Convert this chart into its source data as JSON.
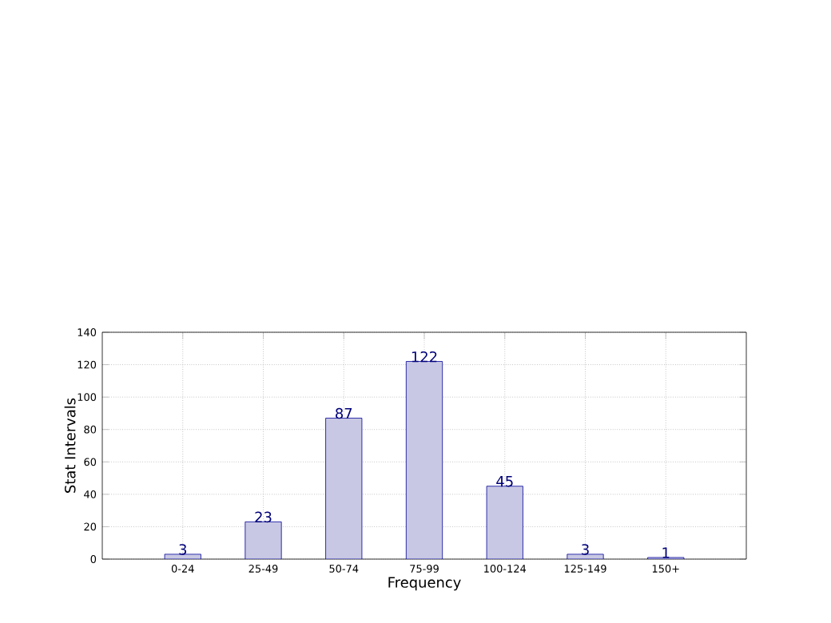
{
  "chart_data": {
    "type": "bar",
    "xlabel": "Frequency",
    "ylabel": "Stat Intervals",
    "categories": [
      "0-24",
      "25-49",
      "50-74",
      "75-99",
      "100-124",
      "125-149",
      "150+"
    ],
    "values": [
      3,
      23,
      87,
      122,
      45,
      3,
      1
    ],
    "color": "#c8c8e4",
    "ylim": [
      0,
      140
    ],
    "yticks": [
      0,
      20,
      40,
      60,
      80,
      100,
      120,
      140
    ],
    "grid": true,
    "data_labels": true
  }
}
